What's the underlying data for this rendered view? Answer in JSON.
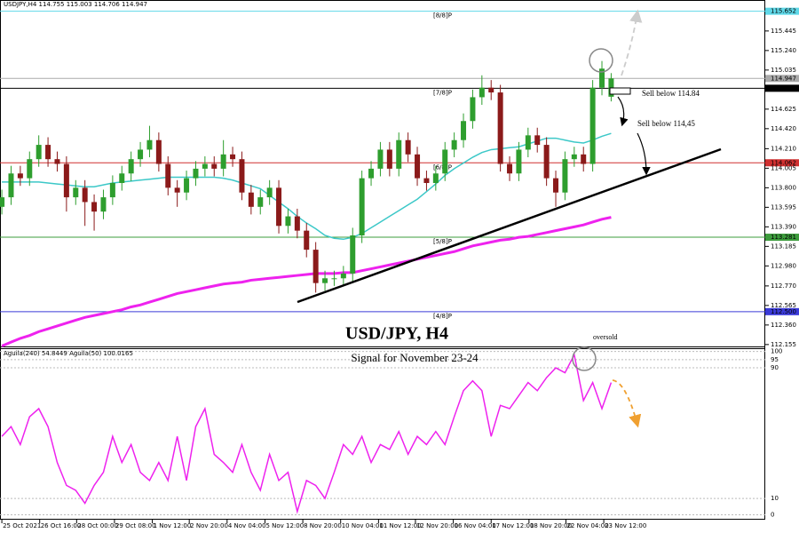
{
  "header": "USDJPY,H4  114.755 115.003 114.706 114.947",
  "chart_data": [
    {
      "type": "candlestick",
      "title": "USD/JPY, H4",
      "up_color": "#2e9e2e",
      "down_color": "#8b1a1a",
      "xlim": [
        -0.2,
        82.5
      ],
      "ylim": [
        112.135,
        115.77
      ],
      "xticks": [
        {
          "value": 0,
          "label": "25 Oct 2021"
        },
        {
          "value": 4.1,
          "label": "26 Oct 16:00"
        },
        {
          "value": 8.1,
          "label": "28 Oct 00:00"
        },
        {
          "value": 12.2,
          "label": "29 Oct 08:00"
        },
        {
          "value": 16.3,
          "label": "1 Nov 12:00"
        },
        {
          "value": 20.3,
          "label": "2 Nov 20:00"
        },
        {
          "value": 24.4,
          "label": "4 Nov 04:00"
        },
        {
          "value": 28.5,
          "label": "5 Nov 12:00"
        },
        {
          "value": 32.6,
          "label": "8 Nov 20:00"
        },
        {
          "value": 36.7,
          "label": "10 Nov 04:00"
        },
        {
          "value": 40.8,
          "label": "11 Nov 12:00"
        },
        {
          "value": 44.8,
          "label": "12 Nov 20:00"
        },
        {
          "value": 48.9,
          "label": "16 Nov 04:00"
        },
        {
          "value": 53,
          "label": "17 Nov 12:00"
        },
        {
          "value": 57.1,
          "label": "18 Nov 20:00"
        },
        {
          "value": 61.1,
          "label": "22 Nov 04:00"
        },
        {
          "value": 65.2,
          "label": "23 Nov 12:00"
        }
      ],
      "yticks": [
        115.445,
        {
          "value": 115.24,
          "label": "115.240"
        },
        115.035,
        114.625,
        {
          "value": 114.42,
          "label": "114.420"
        },
        {
          "value": 114.21,
          "label": "114.210"
        },
        114.005,
        {
          "value": 113.8,
          "label": "113.800"
        },
        113.595,
        {
          "value": 113.39,
          "label": "113.390"
        },
        113.185,
        {
          "value": 112.98,
          "label": "112.980"
        },
        {
          "value": 112.77,
          "label": "112.770"
        },
        112.565,
        {
          "value": 112.36,
          "label": "112.360"
        },
        112.155
      ],
      "candles": [
        [
          113.6,
          113.78,
          113.52,
          113.7
        ],
        [
          113.7,
          114.03,
          113.62,
          113.95
        ],
        [
          113.95,
          114.03,
          113.82,
          113.9
        ],
        [
          113.9,
          114.18,
          113.82,
          114.1
        ],
        [
          114.1,
          114.35,
          114.02,
          114.25
        ],
        [
          114.25,
          114.33,
          114.02,
          114.1
        ],
        [
          114.1,
          114.18,
          113.97,
          114.05
        ],
        [
          114.05,
          114.13,
          113.55,
          113.7
        ],
        [
          113.7,
          113.88,
          113.62,
          113.8
        ],
        [
          113.8,
          113.88,
          113.4,
          113.65
        ],
        [
          113.65,
          113.73,
          113.35,
          113.55
        ],
        [
          113.55,
          113.78,
          113.47,
          113.7
        ],
        [
          113.7,
          113.93,
          113.62,
          113.85
        ],
        [
          113.85,
          114.03,
          113.77,
          113.95
        ],
        [
          113.95,
          114.18,
          113.87,
          114.1
        ],
        [
          114.1,
          114.28,
          114.02,
          114.2
        ],
        [
          114.2,
          114.45,
          114.12,
          114.3
        ],
        [
          114.3,
          114.38,
          113.97,
          114.05
        ],
        [
          114.05,
          114.13,
          113.72,
          113.8
        ],
        [
          113.8,
          113.88,
          113.6,
          113.75
        ],
        [
          113.75,
          113.98,
          113.67,
          113.9
        ],
        [
          113.9,
          114.08,
          113.82,
          114.0
        ],
        [
          114.0,
          114.13,
          113.92,
          114.05
        ],
        [
          114.05,
          114.13,
          113.92,
          114.0
        ],
        [
          114.0,
          114.3,
          113.92,
          114.15
        ],
        [
          114.15,
          114.23,
          114.02,
          114.1
        ],
        [
          114.1,
          114.18,
          113.67,
          113.75
        ],
        [
          113.75,
          113.83,
          113.52,
          113.6
        ],
        [
          113.6,
          113.78,
          113.52,
          113.7
        ],
        [
          113.7,
          113.88,
          113.62,
          113.8
        ],
        [
          113.8,
          113.88,
          113.32,
          113.4
        ],
        [
          113.4,
          113.58,
          113.32,
          113.5
        ],
        [
          113.5,
          113.58,
          113.27,
          113.35
        ],
        [
          113.35,
          113.43,
          113.07,
          113.15
        ],
        [
          113.15,
          113.23,
          112.7,
          112.8
        ],
        [
          112.8,
          112.93,
          112.72,
          112.85
        ],
        [
          112.85,
          112.93,
          112.77,
          112.85
        ],
        [
          112.85,
          112.98,
          112.77,
          112.9
        ],
        [
          112.9,
          113.38,
          112.82,
          113.3
        ],
        [
          113.3,
          113.98,
          113.22,
          113.9
        ],
        [
          113.9,
          114.08,
          113.82,
          114.0
        ],
        [
          114.0,
          114.28,
          113.92,
          114.2
        ],
        [
          114.2,
          114.28,
          113.92,
          114.0
        ],
        [
          114.0,
          114.38,
          113.92,
          114.3
        ],
        [
          114.3,
          114.38,
          114.07,
          114.15
        ],
        [
          114.15,
          114.23,
          113.82,
          113.9
        ],
        [
          113.9,
          113.98,
          113.77,
          113.85
        ],
        [
          113.85,
          114.03,
          113.77,
          113.95
        ],
        [
          113.95,
          114.28,
          113.87,
          114.2
        ],
        [
          114.2,
          114.38,
          114.12,
          114.3
        ],
        [
          114.3,
          114.58,
          114.22,
          114.5
        ],
        [
          114.5,
          114.83,
          114.42,
          114.75
        ],
        [
          114.75,
          114.98,
          114.67,
          114.85
        ],
        [
          114.85,
          114.93,
          114.72,
          114.8
        ],
        [
          114.8,
          114.88,
          113.97,
          114.05
        ],
        [
          114.05,
          114.13,
          113.87,
          113.95
        ],
        [
          113.95,
          114.28,
          113.87,
          114.2
        ],
        [
          114.2,
          114.43,
          114.12,
          114.35
        ],
        [
          114.35,
          114.43,
          114.17,
          114.25
        ],
        [
          114.25,
          114.33,
          113.82,
          113.9
        ],
        [
          113.9,
          113.98,
          113.6,
          113.75
        ],
        [
          113.75,
          114.18,
          113.67,
          114.1
        ],
        [
          114.1,
          114.23,
          114.02,
          114.15
        ],
        [
          114.15,
          114.23,
          113.97,
          114.05
        ],
        [
          114.05,
          114.93,
          113.97,
          114.85
        ],
        [
          114.85,
          115.13,
          114.77,
          115.05
        ],
        [
          114.755,
          115.003,
          114.706,
          114.947
        ]
      ],
      "ma_lines": [
        {
          "color": "#3cc8c8",
          "values": [
            113.86,
            113.86,
            113.86,
            113.86,
            113.86,
            113.85,
            113.84,
            113.83,
            113.82,
            113.81,
            113.81,
            113.83,
            113.85,
            113.86,
            113.87,
            113.88,
            113.89,
            113.9,
            113.91,
            113.91,
            113.91,
            113.91,
            113.91,
            113.91,
            113.9,
            113.88,
            113.85,
            113.82,
            113.79,
            113.72,
            113.65,
            113.58,
            113.5,
            113.43,
            113.37,
            113.3,
            113.27,
            113.26,
            113.28,
            113.32,
            113.38,
            113.44,
            113.5,
            113.56,
            113.62,
            113.68,
            113.76,
            113.84,
            113.93,
            114.0,
            114.06,
            114.12,
            114.17,
            114.2,
            114.21,
            114.22,
            114.23,
            114.26,
            114.29,
            114.32,
            114.32,
            114.3,
            114.28,
            114.27,
            114.3,
            114.34,
            114.37
          ]
        },
        {
          "color": "#ee22ee",
          "values": [
            112.14,
            112.18,
            112.22,
            112.25,
            112.29,
            112.32,
            112.35,
            112.38,
            112.41,
            112.44,
            112.46,
            112.48,
            112.5,
            112.52,
            112.55,
            112.57,
            112.6,
            112.63,
            112.66,
            112.69,
            112.71,
            112.73,
            112.75,
            112.77,
            112.79,
            112.8,
            112.81,
            112.83,
            112.84,
            112.85,
            112.86,
            112.87,
            112.88,
            112.89,
            112.9,
            112.9,
            112.9,
            112.91,
            112.91,
            112.93,
            112.95,
            112.97,
            112.99,
            113.01,
            113.03,
            113.05,
            113.07,
            113.09,
            113.11,
            113.13,
            113.16,
            113.19,
            113.21,
            113.23,
            113.25,
            113.26,
            113.28,
            113.29,
            113.31,
            113.33,
            113.35,
            113.37,
            113.39,
            113.41,
            113.44,
            113.47,
            113.49
          ]
        }
      ],
      "levels": [
        {
          "label": "[8/8]P",
          "value": 115.652,
          "color": "#5fd8e8"
        },
        {
          "value": 114.947,
          "color": "#aaaaaa"
        },
        {
          "label": "[7/8]P",
          "value": 114.844,
          "color": "#000000"
        },
        {
          "label": "[6/8]P",
          "value": 114.062,
          "color": "#d03030"
        },
        {
          "label": "[5/8]P",
          "value": 113.281,
          "color": "#3c9c3c"
        },
        {
          "label": "[4/8]P",
          "value": {
            "value": 112.5,
            "label": "112.500"
          },
          "color": "#3a3ad8"
        }
      ],
      "annotations": [
        "Sell below 114.84",
        "Sell below 114,45"
      ]
    },
    {
      "type": "line",
      "title": "Signal for November 23-24",
      "legend": "Aguila(240) 54.8449 Aguila(50) 100.0165",
      "annotation": "oversold",
      "color": "#ee22ee",
      "ylim": [
        -3,
        102
      ],
      "yticks": [
        100,
        95,
        90,
        10,
        0
      ],
      "values": [
        48,
        54,
        43,
        60,
        65,
        54,
        32,
        18,
        15,
        7,
        18,
        26,
        48,
        32,
        43,
        26,
        21,
        32,
        21,
        48,
        21,
        54,
        65,
        37,
        32,
        26,
        43,
        26,
        15,
        37,
        21,
        26,
        2,
        21,
        18,
        10,
        26,
        43,
        37,
        48,
        32,
        43,
        40,
        51,
        37,
        48,
        43,
        51,
        43,
        60,
        76,
        82,
        76,
        48,
        67,
        65,
        73,
        81,
        76,
        84,
        90,
        87,
        98,
        70,
        81,
        65,
        81
      ]
    }
  ]
}
